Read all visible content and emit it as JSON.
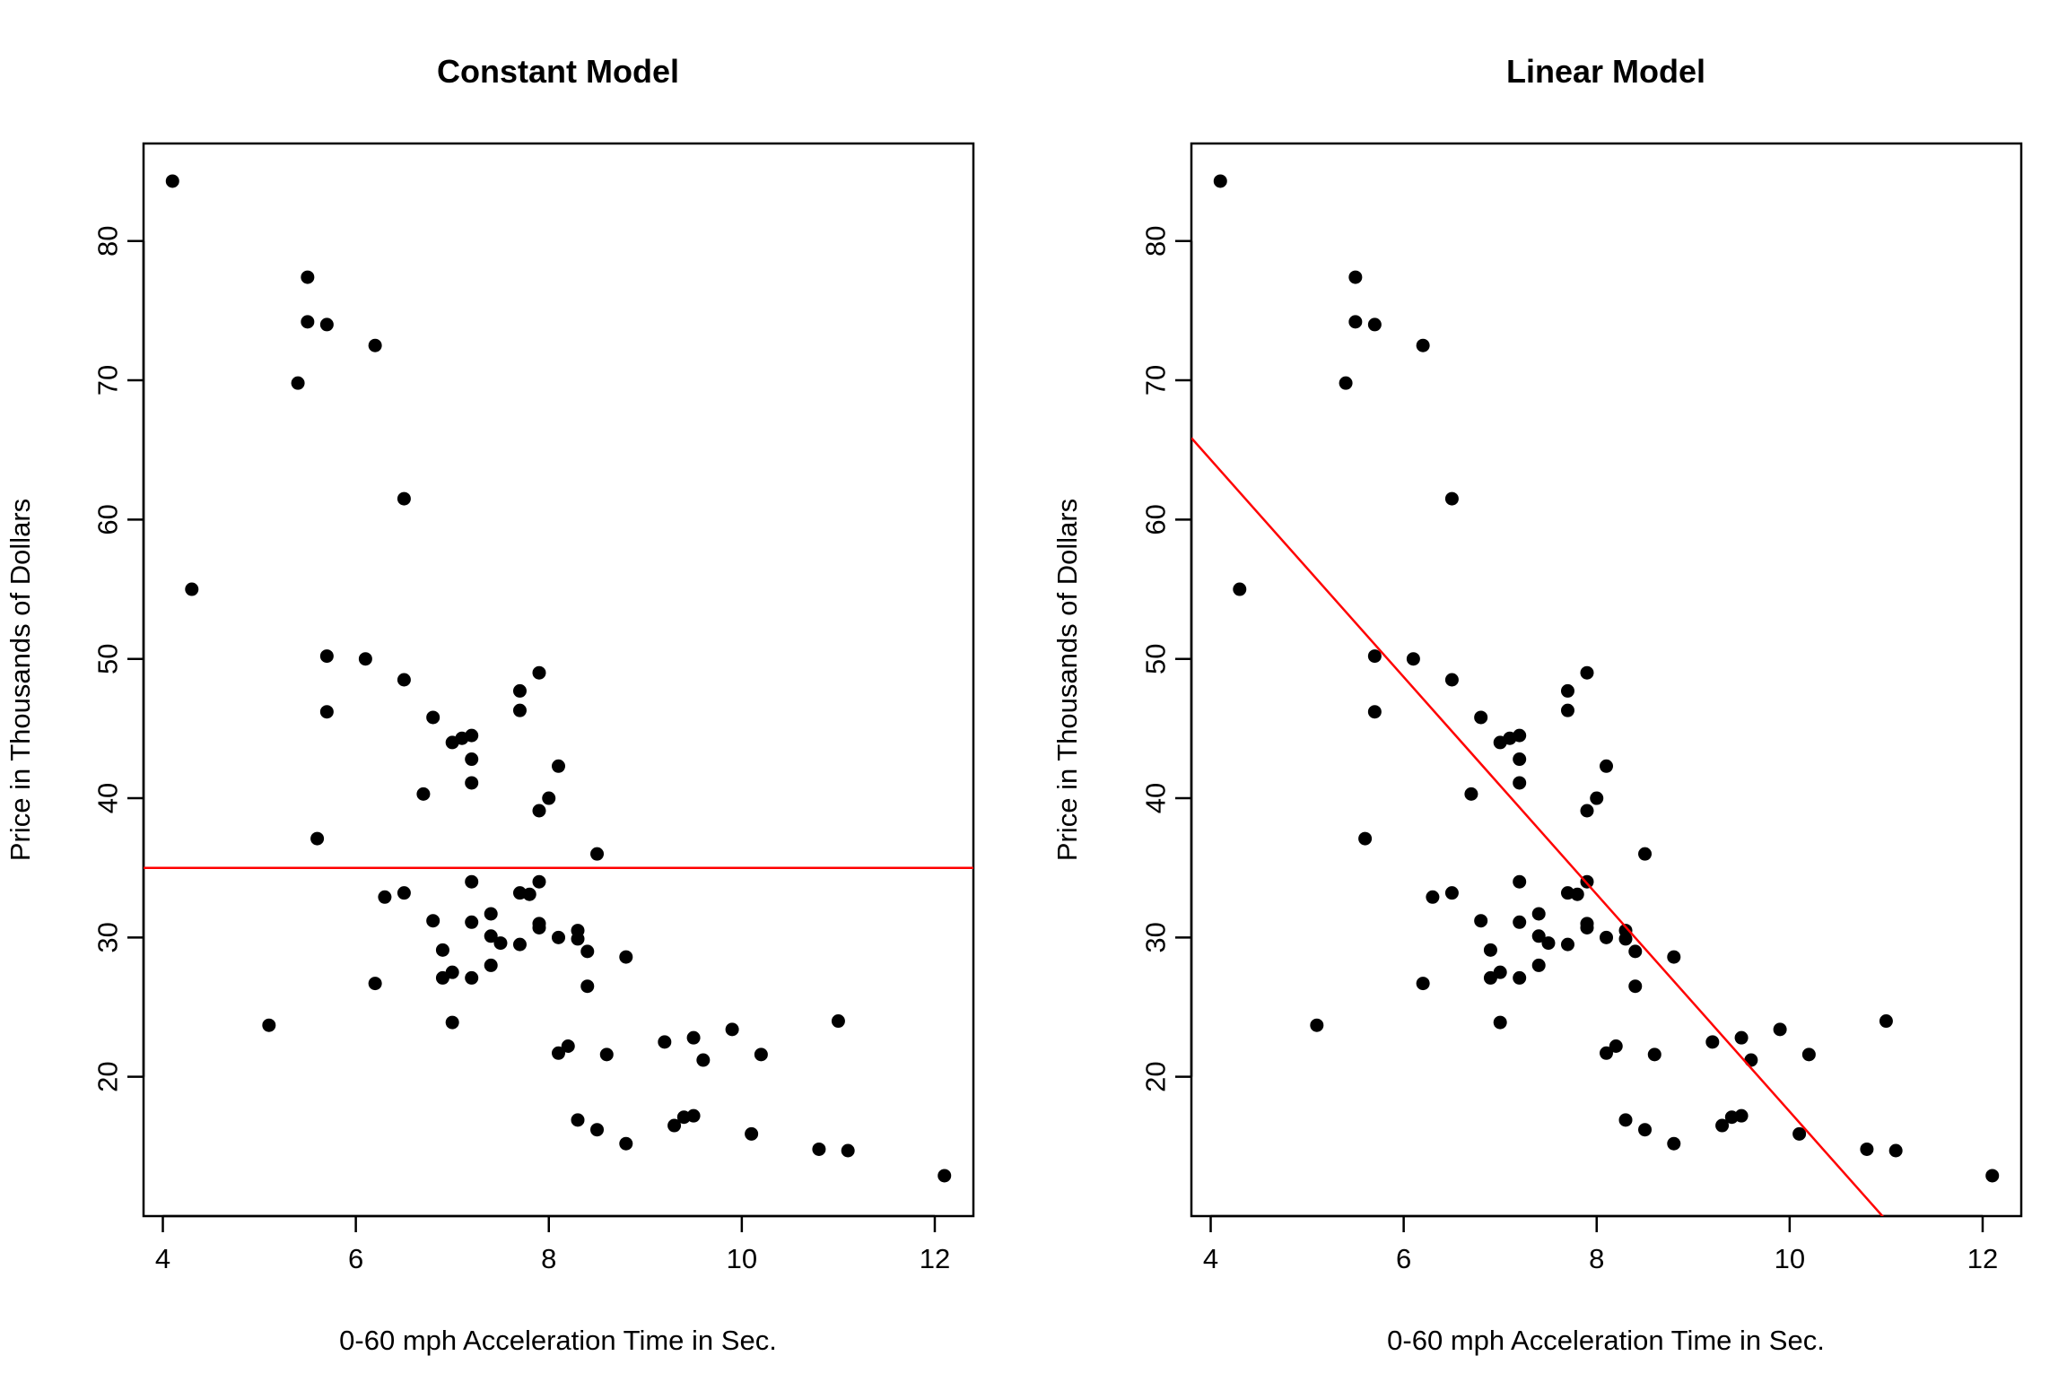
{
  "chart_data": [
    {
      "type": "scatter",
      "title": "Constant Model",
      "xlabel": "0-60 mph Acceleration Time in Sec.",
      "ylabel": "Price in Thousands of Dollars",
      "xlim": [
        3.8,
        12.4
      ],
      "ylim": [
        10,
        87
      ],
      "xticks": [
        4,
        6,
        8,
        10,
        12
      ],
      "yticks": [
        20,
        30,
        40,
        50,
        60,
        70,
        80
      ],
      "grid": false,
      "point_color": "#000000",
      "fit_line": {
        "type": "constant",
        "value": 35.0,
        "color": "#ff0000"
      }
    },
    {
      "type": "scatter",
      "title": "Linear Model",
      "xlabel": "0-60 mph Acceleration Time in Sec.",
      "ylabel": "Price in Thousands of Dollars",
      "xlim": [
        3.8,
        12.4
      ],
      "ylim": [
        10,
        87
      ],
      "xticks": [
        4,
        6,
        8,
        10,
        12
      ],
      "yticks": [
        20,
        30,
        40,
        50,
        60,
        70,
        80
      ],
      "grid": false,
      "point_color": "#000000",
      "fit_line": {
        "type": "linear",
        "intercept": 95.5,
        "slope": -7.8,
        "color": "#ff0000"
      }
    }
  ],
  "points": [
    [
      4.1,
      84.3
    ],
    [
      4.3,
      55.0
    ],
    [
      5.1,
      23.7
    ],
    [
      5.4,
      69.8
    ],
    [
      5.5,
      77.4
    ],
    [
      5.5,
      74.2
    ],
    [
      5.6,
      37.1
    ],
    [
      5.7,
      74.0
    ],
    [
      5.7,
      50.2
    ],
    [
      5.7,
      46.2
    ],
    [
      6.1,
      50.0
    ],
    [
      6.2,
      72.5
    ],
    [
      6.2,
      26.7
    ],
    [
      6.3,
      32.9
    ],
    [
      6.5,
      61.5
    ],
    [
      6.5,
      48.5
    ],
    [
      6.5,
      33.2
    ],
    [
      6.7,
      40.3
    ],
    [
      6.8,
      45.8
    ],
    [
      6.8,
      31.2
    ],
    [
      6.9,
      29.1
    ],
    [
      6.9,
      27.1
    ],
    [
      7.0,
      44.0
    ],
    [
      7.0,
      27.5
    ],
    [
      7.0,
      23.9
    ],
    [
      7.1,
      44.3
    ],
    [
      7.2,
      44.5
    ],
    [
      7.2,
      42.8
    ],
    [
      7.2,
      41.1
    ],
    [
      7.2,
      34.0
    ],
    [
      7.2,
      31.1
    ],
    [
      7.2,
      27.1
    ],
    [
      7.4,
      31.7
    ],
    [
      7.4,
      30.1
    ],
    [
      7.4,
      28.0
    ],
    [
      7.5,
      29.6
    ],
    [
      7.7,
      47.7
    ],
    [
      7.7,
      46.3
    ],
    [
      7.7,
      33.2
    ],
    [
      7.7,
      29.5
    ],
    [
      7.8,
      33.1
    ],
    [
      7.9,
      49.0
    ],
    [
      7.9,
      39.1
    ],
    [
      7.9,
      34.0
    ],
    [
      7.9,
      31.0
    ],
    [
      7.9,
      30.7
    ],
    [
      8.0,
      40.0
    ],
    [
      8.1,
      42.3
    ],
    [
      8.1,
      30.0
    ],
    [
      8.1,
      21.7
    ],
    [
      8.2,
      22.2
    ],
    [
      8.3,
      30.5
    ],
    [
      8.3,
      29.9
    ],
    [
      8.3,
      16.9
    ],
    [
      8.4,
      29.0
    ],
    [
      8.4,
      26.5
    ],
    [
      8.5,
      36.0
    ],
    [
      8.5,
      16.2
    ],
    [
      8.6,
      21.6
    ],
    [
      8.8,
      28.6
    ],
    [
      8.8,
      15.2
    ],
    [
      9.2,
      22.5
    ],
    [
      9.3,
      16.5
    ],
    [
      9.4,
      17.1
    ],
    [
      9.5,
      22.8
    ],
    [
      9.5,
      17.2
    ],
    [
      9.6,
      21.2
    ],
    [
      9.9,
      23.4
    ],
    [
      10.1,
      15.9
    ],
    [
      10.2,
      21.6
    ],
    [
      10.8,
      14.8
    ],
    [
      11.0,
      24.0
    ],
    [
      11.1,
      14.7
    ],
    [
      12.1,
      12.9
    ]
  ]
}
